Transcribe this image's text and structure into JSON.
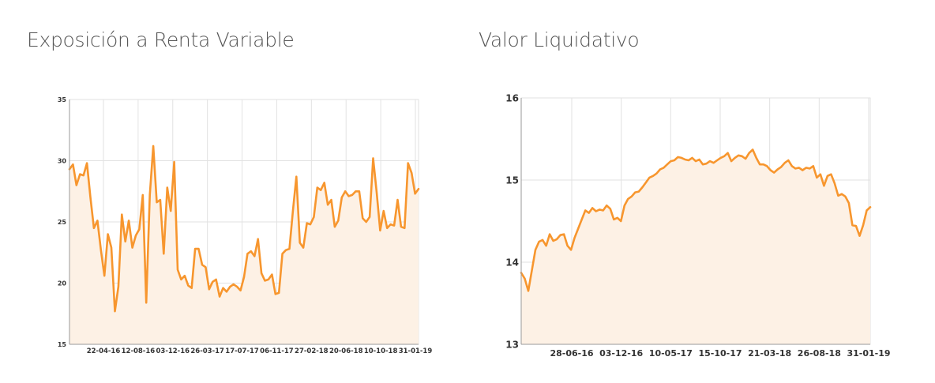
{
  "charts_meta": {
    "left_title": "Exposición a Renta Variable",
    "right_title": "Valor Liquidativo"
  },
  "colors": {
    "line": "#F7962E",
    "fill": "#FDF1E5",
    "grid": "#E2E2E2",
    "axis": "#9A9A9A"
  },
  "chart_data": [
    {
      "type": "area",
      "title": "Exposición a Renta Variable",
      "xlabel": "",
      "ylabel": "",
      "ylim": [
        15,
        35
      ],
      "yticks": [
        15,
        20,
        25,
        30,
        35
      ],
      "xtick_labels": [
        "22-04-16",
        "12-08-16",
        "03-12-16",
        "26-03-17",
        "17-07-17",
        "06-11-17",
        "27-02-18",
        "20-06-18",
        "10-10-18",
        "31-01-19"
      ],
      "grid": true,
      "series": [
        {
          "values": [
            29.3,
            29.7,
            28.0,
            28.9,
            28.8,
            29.8,
            27.0,
            24.5,
            25.1,
            22.7,
            20.6,
            24.0,
            22.9,
            17.7,
            19.7,
            25.6,
            23.4,
            25.1,
            22.9,
            23.9,
            24.4,
            27.2,
            18.4,
            27.2,
            31.2,
            26.6,
            26.8,
            22.4,
            27.8,
            25.9,
            29.9,
            21.1,
            20.3,
            20.6,
            19.8,
            19.6,
            22.8,
            22.8,
            21.5,
            21.3,
            19.5,
            20.1,
            20.3,
            18.9,
            19.6,
            19.3,
            19.7,
            19.9,
            19.7,
            19.4,
            20.5,
            22.4,
            22.6,
            22.2,
            23.6,
            20.8,
            20.2,
            20.3,
            20.7,
            19.1,
            19.2,
            22.4,
            22.7,
            22.8,
            25.9,
            28.7,
            23.3,
            22.9,
            24.9,
            24.8,
            25.4,
            27.8,
            27.6,
            28.2,
            26.4,
            26.8,
            24.6,
            25.1,
            27.0,
            27.5,
            27.1,
            27.2,
            27.5,
            27.5,
            25.3,
            25.0,
            25.4,
            30.2,
            27.4,
            24.3,
            25.9,
            24.5,
            24.8,
            24.7,
            26.8,
            24.6,
            24.5,
            29.8,
            29.0,
            27.3,
            27.7
          ]
        }
      ]
    },
    {
      "type": "area",
      "title": "Valor Liquidativo",
      "xlabel": "",
      "ylabel": "",
      "ylim": [
        13,
        16
      ],
      "yticks": [
        13,
        14,
        15,
        16
      ],
      "xtick_labels": [
        "28-06-16",
        "03-12-16",
        "10-05-17",
        "15-10-17",
        "21-03-18",
        "26-08-18",
        "31-01-19"
      ],
      "grid": true,
      "series": [
        {
          "values": [
            13.87,
            13.8,
            13.65,
            13.9,
            14.15,
            14.25,
            14.27,
            14.2,
            14.34,
            14.26,
            14.28,
            14.33,
            14.34,
            14.2,
            14.15,
            14.3,
            14.41,
            14.52,
            14.63,
            14.6,
            14.66,
            14.62,
            14.64,
            14.63,
            14.69,
            14.65,
            14.52,
            14.54,
            14.5,
            14.69,
            14.77,
            14.8,
            14.85,
            14.86,
            14.91,
            14.97,
            15.03,
            15.05,
            15.08,
            15.13,
            15.15,
            15.19,
            15.23,
            15.24,
            15.28,
            15.27,
            15.25,
            15.24,
            15.27,
            15.23,
            15.25,
            15.19,
            15.2,
            15.23,
            15.21,
            15.24,
            15.27,
            15.29,
            15.33,
            15.23,
            15.27,
            15.3,
            15.29,
            15.26,
            15.33,
            15.37,
            15.27,
            15.19,
            15.19,
            15.17,
            15.12,
            15.09,
            15.13,
            15.16,
            15.21,
            15.24,
            15.17,
            15.14,
            15.15,
            15.12,
            15.15,
            15.14,
            15.17,
            15.03,
            15.07,
            14.93,
            15.05,
            15.07,
            14.96,
            14.81,
            14.83,
            14.8,
            14.72,
            14.45,
            14.44,
            14.32,
            14.45,
            14.63,
            14.67
          ]
        }
      ]
    }
  ]
}
